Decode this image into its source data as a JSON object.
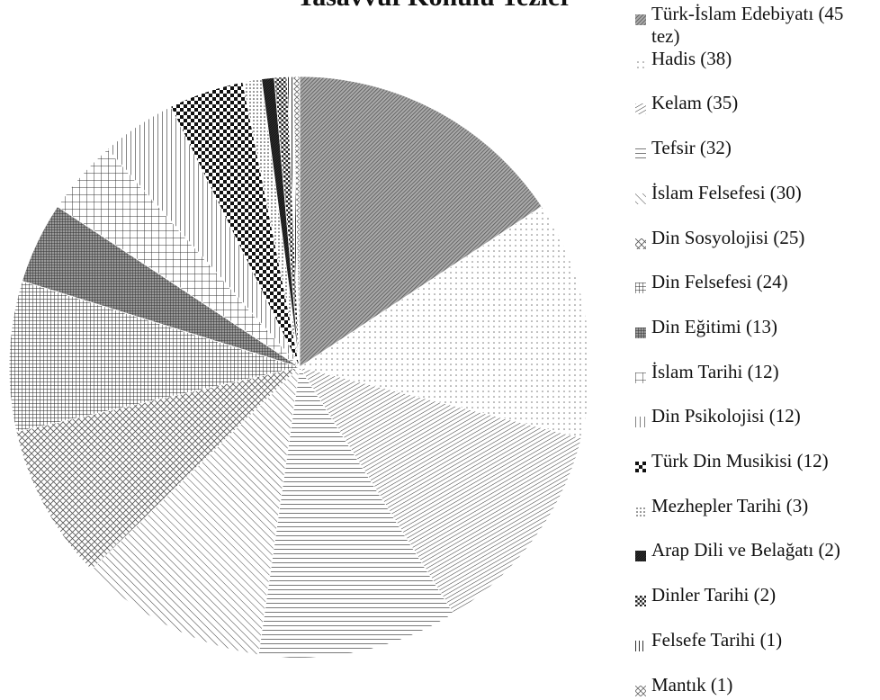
{
  "chart_data": {
    "type": "pie",
    "title": "Tasavvuf Konulu Tezler",
    "categories": [
      "Türk-İslam Edebiyatı (45 tez)",
      "Hadis (38)",
      "Kelam (35)",
      "Tefsir (32)",
      "İslam Felsefesi (30)",
      "Din Sosyolojisi (25)",
      "Din Felsefesi (24)",
      "Din Eğitimi (13)",
      "İslam Tarihi (12)",
      "Din Psikolojisi (12)",
      "Türk Din Musikisi (12)",
      "Mezhepler Tarihi (3)",
      "Arap Dili ve Belağatı (2)",
      "Dinler Tarihi (2)",
      "Felsefe Tarihi (1)",
      "Mantık (1)"
    ],
    "values": [
      45,
      38,
      35,
      32,
      30,
      25,
      24,
      13,
      12,
      12,
      12,
      3,
      2,
      2,
      1,
      1
    ],
    "legend": "right"
  }
}
